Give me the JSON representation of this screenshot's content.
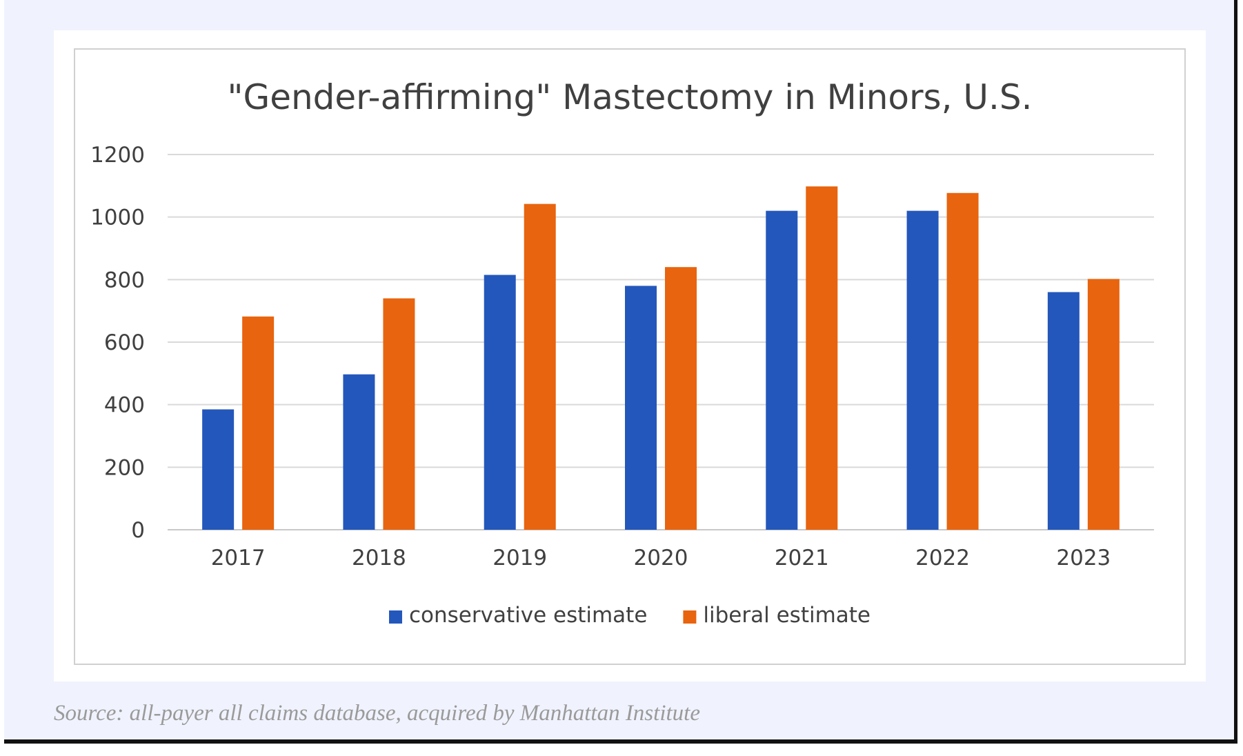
{
  "chart_data": {
    "type": "bar",
    "title": "\"Gender-affirming\" Mastectomy in Minors, U.S.",
    "categories": [
      "2017",
      "2018",
      "2019",
      "2020",
      "2021",
      "2022",
      "2023"
    ],
    "series": [
      {
        "name": "conservative estimate",
        "color": "#2457bb",
        "values": [
          385,
          497,
          815,
          780,
          1020,
          1020,
          760
        ]
      },
      {
        "name": "liberal estimate",
        "color": "#e8640f",
        "values": [
          682,
          740,
          1042,
          840,
          1098,
          1077,
          802
        ]
      }
    ],
    "ylim": [
      0,
      1200
    ],
    "yticks": [
      0,
      200,
      400,
      600,
      800,
      1000,
      1200
    ],
    "xlabel": "",
    "ylabel": "",
    "grid": true,
    "legend": "bottom"
  },
  "source": "Source: all-payer all claims database, acquired by Manhattan Institute"
}
